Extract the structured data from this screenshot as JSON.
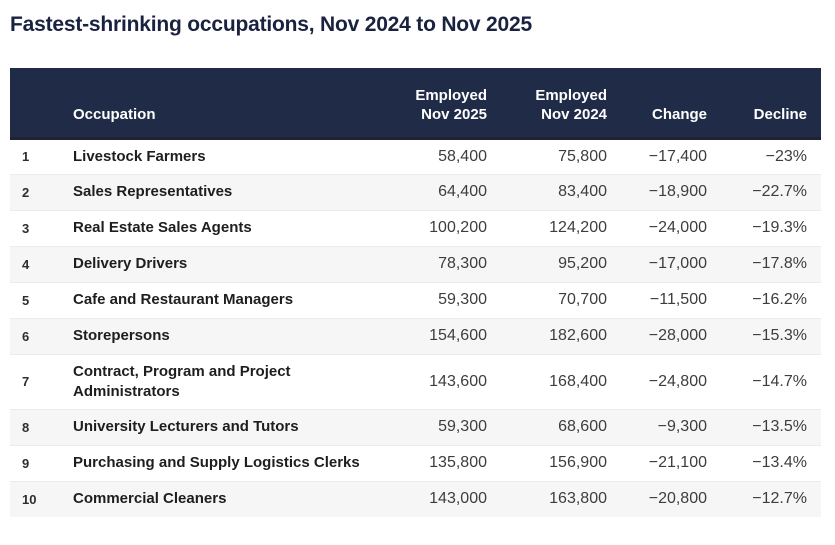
{
  "page": {
    "title": "Fastest-shrinking occupations, Nov 2024 to Nov 2025"
  },
  "colors": {
    "title_text": "#19223f",
    "header_background": "#1f2b47",
    "header_bottom_border": "#212130",
    "row_stripe": "#f5f6f5",
    "body_text": "#3d3d3d"
  },
  "chart_data": {
    "type": "table",
    "title": "Fastest-shrinking occupations, Nov 2024 to Nov 2025",
    "headers": {
      "rank": "",
      "occupation": "Occupation",
      "emp2025_line1": "Employed",
      "emp2025_line2": "Nov 2025",
      "emp2024_line1": "Employed",
      "emp2024_line2": "Nov 2024",
      "change": "Change",
      "decline": "Decline"
    },
    "rows": [
      {
        "rank": "1",
        "occupation": "Livestock Farmers",
        "emp2025": "58,400",
        "emp2024": "75,800",
        "change": "−17,400",
        "decline": "−23%"
      },
      {
        "rank": "2",
        "occupation": "Sales Representatives",
        "emp2025": "64,400",
        "emp2024": "83,400",
        "change": "−18,900",
        "decline": "−22.7%"
      },
      {
        "rank": "3",
        "occupation": "Real Estate Sales Agents",
        "emp2025": "100,200",
        "emp2024": "124,200",
        "change": "−24,000",
        "decline": "−19.3%"
      },
      {
        "rank": "4",
        "occupation": "Delivery Drivers",
        "emp2025": "78,300",
        "emp2024": "95,200",
        "change": "−17,000",
        "decline": "−17.8%"
      },
      {
        "rank": "5",
        "occupation": "Cafe and Restaurant Managers",
        "emp2025": "59,300",
        "emp2024": "70,700",
        "change": "−11,500",
        "decline": "−16.2%"
      },
      {
        "rank": "6",
        "occupation": "Storepersons",
        "emp2025": "154,600",
        "emp2024": "182,600",
        "change": "−28,000",
        "decline": "−15.3%"
      },
      {
        "rank": "7",
        "occupation": "Contract, Program and Project Administrators",
        "emp2025": "143,600",
        "emp2024": "168,400",
        "change": "−24,800",
        "decline": "−14.7%"
      },
      {
        "rank": "8",
        "occupation": "University Lecturers and Tutors",
        "emp2025": "59,300",
        "emp2024": "68,600",
        "change": "−9,300",
        "decline": "−13.5%"
      },
      {
        "rank": "9",
        "occupation": "Purchasing and Supply Logistics Clerks",
        "emp2025": "135,800",
        "emp2024": "156,900",
        "change": "−21,100",
        "decline": "−13.4%"
      },
      {
        "rank": "10",
        "occupation": "Commercial Cleaners",
        "emp2025": "143,000",
        "emp2024": "163,800",
        "change": "−20,800",
        "decline": "−12.7%"
      }
    ]
  }
}
